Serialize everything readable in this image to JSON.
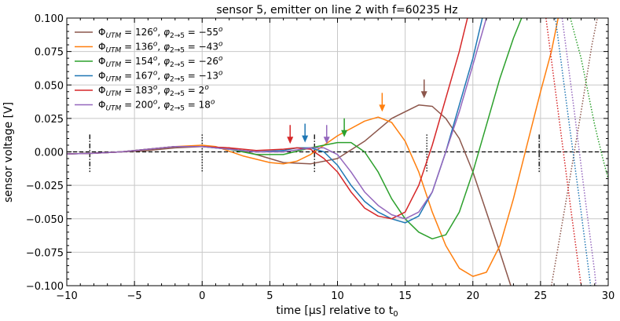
{
  "chart_data": {
    "type": "line",
    "title": "sensor 5, emitter on line 2 with f=60235 Hz",
    "xlabel": "time [μs] relative to t",
    "xlabel_sub": "0",
    "ylabel": "sensor voltage [V]",
    "xlim": [
      -10,
      30
    ],
    "ylim": [
      -0.1,
      0.1
    ],
    "xticks": [
      -10,
      -5,
      0,
      5,
      10,
      15,
      20,
      25,
      30
    ],
    "xtick_labels": [
      "−10",
      "−5",
      "0",
      "5",
      "10",
      "15",
      "20",
      "25",
      "30"
    ],
    "yticks": [
      -0.1,
      -0.075,
      -0.05,
      -0.025,
      0.0,
      0.025,
      0.05,
      0.075,
      0.1
    ],
    "ytick_labels": [
      "−0.100",
      "−0.075",
      "−0.050",
      "−0.025",
      "0.000",
      "0.025",
      "0.050",
      "0.075",
      "0.100"
    ],
    "grid": true,
    "legend_position": "top-left",
    "series": [
      {
        "name": "Φ_UTM = 126°, φ_2→5 = −55°",
        "legend": {
          "phi_utm": "126",
          "phi_25": "−55"
        },
        "color": "#8c564b",
        "points": [
          [
            -10,
            -0.0015
          ],
          [
            -8,
            -0.001
          ],
          [
            -6,
            0.0
          ],
          [
            -4,
            0.001
          ],
          [
            -2,
            0.003
          ],
          [
            0,
            0.004
          ],
          [
            2,
            0.003
          ],
          [
            4,
            -0.002
          ],
          [
            6,
            -0.008
          ],
          [
            8,
            -0.009
          ],
          [
            10,
            -0.005
          ],
          [
            12,
            0.008
          ],
          [
            14,
            0.025
          ],
          [
            16,
            0.035
          ],
          [
            17,
            0.034
          ],
          [
            18,
            0.025
          ],
          [
            19,
            0.01
          ],
          [
            20,
            -0.015
          ],
          [
            21,
            -0.045
          ],
          [
            22,
            -0.075
          ],
          [
            22.8,
            -0.1
          ]
        ],
        "dotted": [
          [
            25.8,
            -0.1
          ],
          [
            27,
            -0.03
          ],
          [
            28,
            0.03
          ],
          [
            28.8,
            0.08
          ],
          [
            29.2,
            0.1
          ]
        ],
        "arrow_x": 16.4,
        "arrow_y": 0.04
      },
      {
        "name": "Φ_UTM = 136°, φ_2→5 = −43°",
        "legend": {
          "phi_utm": "136",
          "phi_25": "−43"
        },
        "color": "#ff7f0e",
        "points": [
          [
            -10,
            -0.0015
          ],
          [
            -8,
            -0.001
          ],
          [
            -6,
            0.0
          ],
          [
            -4,
            0.002
          ],
          [
            -2,
            0.004
          ],
          [
            0,
            0.005
          ],
          [
            1,
            0.004
          ],
          [
            3,
            -0.003
          ],
          [
            5,
            -0.008
          ],
          [
            6,
            -0.009
          ],
          [
            7,
            -0.007
          ],
          [
            8,
            -0.002
          ],
          [
            9,
            0.005
          ],
          [
            10,
            0.012
          ],
          [
            12,
            0.023
          ],
          [
            13,
            0.026
          ],
          [
            14,
            0.022
          ],
          [
            15,
            0.008
          ],
          [
            16,
            -0.015
          ],
          [
            17,
            -0.045
          ],
          [
            18,
            -0.07
          ],
          [
            19,
            -0.087
          ],
          [
            20,
            -0.093
          ],
          [
            21,
            -0.09
          ],
          [
            22,
            -0.07
          ],
          [
            23,
            -0.035
          ],
          [
            24,
            0.005
          ],
          [
            25,
            0.045
          ],
          [
            25.8,
            0.075
          ],
          [
            26.3,
            0.1
          ]
        ],
        "dotted": [],
        "arrow_x": 13.3,
        "arrow_y": 0.03
      },
      {
        "name": "Φ_UTM = 154°, φ_2→5 = −26°",
        "legend": {
          "phi_utm": "154",
          "phi_25": "−26"
        },
        "color": "#2ca02c",
        "points": [
          [
            -10,
            -0.0015
          ],
          [
            -8,
            -0.001
          ],
          [
            -6,
            0.0
          ],
          [
            -4,
            0.002
          ],
          [
            -2,
            0.004
          ],
          [
            0,
            0.004
          ],
          [
            2,
            0.002
          ],
          [
            4,
            -0.002
          ],
          [
            6,
            -0.002
          ],
          [
            8,
            0.003
          ],
          [
            10,
            0.007
          ],
          [
            11,
            0.007
          ],
          [
            12,
            0.0
          ],
          [
            13,
            -0.015
          ],
          [
            14,
            -0.035
          ],
          [
            15,
            -0.05
          ],
          [
            16,
            -0.06
          ],
          [
            17,
            -0.065
          ],
          [
            18,
            -0.062
          ],
          [
            19,
            -0.045
          ],
          [
            20,
            -0.015
          ],
          [
            21,
            0.02
          ],
          [
            22,
            0.055
          ],
          [
            23,
            0.085
          ],
          [
            23.6,
            0.1
          ]
        ],
        "dotted": [
          [
            27.2,
            0.1
          ],
          [
            28,
            0.07
          ],
          [
            29,
            0.02
          ],
          [
            29.6,
            -0.005
          ],
          [
            30,
            -0.02
          ]
        ],
        "arrow_x": 10.5,
        "arrow_y": 0.011
      },
      {
        "name": "Φ_UTM = 167°, φ_2→5 = −13°",
        "legend": {
          "phi_utm": "167",
          "phi_25": "−13"
        },
        "color": "#1f77b4",
        "points": [
          [
            -10,
            -0.0015
          ],
          [
            -8,
            -0.001
          ],
          [
            -6,
            0.0
          ],
          [
            -4,
            0.002
          ],
          [
            -2,
            0.004
          ],
          [
            0,
            0.004
          ],
          [
            2,
            0.002
          ],
          [
            4,
            0.0
          ],
          [
            6,
            0.001
          ],
          [
            7,
            0.003
          ],
          [
            8,
            0.003
          ],
          [
            9,
            0.0
          ],
          [
            10,
            -0.01
          ],
          [
            11,
            -0.025
          ],
          [
            12,
            -0.037
          ],
          [
            13,
            -0.045
          ],
          [
            14,
            -0.05
          ],
          [
            15,
            -0.053
          ],
          [
            16,
            -0.048
          ],
          [
            17,
            -0.03
          ],
          [
            18,
            0.0
          ],
          [
            19,
            0.035
          ],
          [
            20,
            0.07
          ],
          [
            20.7,
            0.1
          ]
        ],
        "dotted": [
          [
            26.1,
            0.1
          ],
          [
            27,
            0.03
          ],
          [
            28,
            -0.045
          ],
          [
            28.7,
            -0.1
          ]
        ],
        "arrow_x": 7.6,
        "arrow_y": 0.007
      },
      {
        "name": "Φ_UTM = 183°, φ_2→5 = 2°",
        "legend": {
          "phi_utm": "183",
          "phi_25": "2"
        },
        "color": "#d62728",
        "points": [
          [
            -10,
            -0.0015
          ],
          [
            -8,
            -0.001
          ],
          [
            -6,
            0.0
          ],
          [
            -4,
            0.002
          ],
          [
            -2,
            0.004
          ],
          [
            0,
            0.004
          ],
          [
            2,
            0.003
          ],
          [
            4,
            0.001
          ],
          [
            6,
            0.002
          ],
          [
            7,
            0.003
          ],
          [
            8,
            0.002
          ],
          [
            9,
            -0.005
          ],
          [
            10,
            -0.015
          ],
          [
            11,
            -0.03
          ],
          [
            12,
            -0.042
          ],
          [
            13,
            -0.048
          ],
          [
            14,
            -0.05
          ],
          [
            15,
            -0.045
          ],
          [
            16,
            -0.025
          ],
          [
            17,
            0.005
          ],
          [
            18,
            0.04
          ],
          [
            19,
            0.075
          ],
          [
            19.6,
            0.1
          ]
        ],
        "dotted": [
          [
            25.4,
            0.1
          ],
          [
            26.3,
            0.03
          ],
          [
            27.2,
            -0.04
          ],
          [
            28,
            -0.1
          ]
        ],
        "arrow_x": 6.5,
        "arrow_y": 0.006
      },
      {
        "name": "Φ_UTM = 200°, φ_2→5 = 18°",
        "legend": {
          "phi_utm": "200",
          "phi_25": "18"
        },
        "color": "#9467bd",
        "points": [
          [
            -10,
            -0.0015
          ],
          [
            -8,
            -0.001
          ],
          [
            -6,
            0.0
          ],
          [
            -4,
            0.002
          ],
          [
            -2,
            0.004
          ],
          [
            0,
            0.004
          ],
          [
            2,
            0.002
          ],
          [
            4,
            0.0
          ],
          [
            6,
            0.0
          ],
          [
            8,
            0.003
          ],
          [
            9,
            0.003
          ],
          [
            10,
            -0.002
          ],
          [
            11,
            -0.015
          ],
          [
            12,
            -0.03
          ],
          [
            13,
            -0.04
          ],
          [
            14,
            -0.047
          ],
          [
            15,
            -0.05
          ],
          [
            16,
            -0.045
          ],
          [
            17,
            -0.03
          ],
          [
            18,
            0.0
          ],
          [
            19,
            0.03
          ],
          [
            20,
            0.065
          ],
          [
            21,
            0.1
          ]
        ],
        "dotted": [
          [
            26.6,
            0.1
          ],
          [
            27.5,
            0.03
          ],
          [
            28.3,
            -0.035
          ],
          [
            29,
            -0.09
          ],
          [
            29.1,
            -0.1
          ]
        ],
        "arrow_x": 9.2,
        "arrow_y": 0.006
      }
    ],
    "zero_line": {
      "style": "dashed",
      "color": "#000000",
      "y": 0
    },
    "marker_lines": [
      {
        "x": -8.3,
        "style": "dashdot",
        "y_range": [
          -0.015,
          0.013
        ]
      },
      {
        "x": 0,
        "style": "dotted",
        "y_range": [
          -0.015,
          0.013
        ]
      },
      {
        "x": 8.3,
        "style": "dashdot",
        "y_range": [
          -0.015,
          0.013
        ]
      },
      {
        "x": 16.6,
        "style": "dotted",
        "y_range": [
          -0.015,
          0.013
        ]
      },
      {
        "x": 24.9,
        "style": "dashdot",
        "y_range": [
          -0.015,
          0.013
        ]
      }
    ]
  }
}
